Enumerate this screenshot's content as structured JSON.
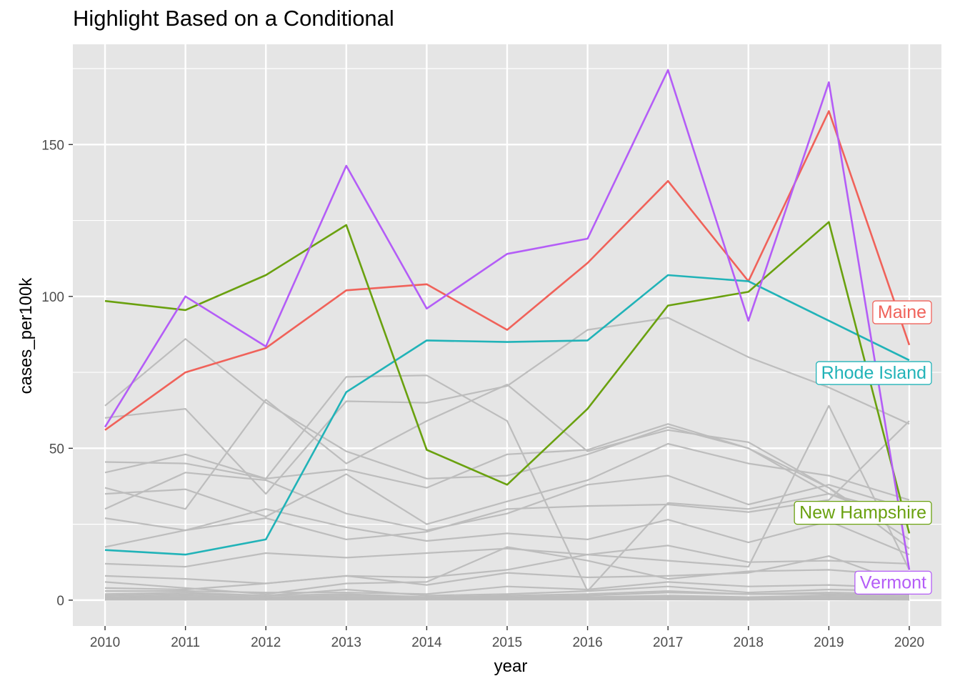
{
  "chart_data": {
    "type": "line",
    "title": "Highlight Based on a Conditional",
    "xlabel": "year",
    "ylabel": "cases_per100k",
    "x": [
      2010,
      2011,
      2012,
      2013,
      2014,
      2015,
      2016,
      2017,
      2018,
      2019,
      2020
    ],
    "xlim": [
      2009.6,
      2020.4
    ],
    "ylim": [
      -8.5,
      183
    ],
    "y_ticks": [
      0,
      50,
      100,
      150
    ],
    "grid": true,
    "legend": "none (direct labels at right end of highlighted lines)",
    "background_color": "#e5e5e5",
    "grid_color": "#ffffff",
    "highlighted_series": [
      {
        "name": "Maine",
        "color": "#f0625a",
        "label_y": 91,
        "values": [
          56,
          75,
          83,
          102,
          104,
          89,
          111,
          138,
          105,
          161,
          84
        ]
      },
      {
        "name": "Rhode Island",
        "color": "#21b3b8",
        "label_y": 71,
        "values": [
          16.5,
          15,
          20,
          68.5,
          85.5,
          85,
          85.5,
          107,
          105,
          92,
          79
        ]
      },
      {
        "name": "New Hampshire",
        "color": "#6aa10f",
        "label_y": 25,
        "values": [
          98.5,
          95.5,
          107,
          123.5,
          49.5,
          38,
          63,
          97,
          101.5,
          124.5,
          22
        ]
      },
      {
        "name": "Vermont",
        "color": "#b45df7",
        "label_y": 2,
        "values": [
          57,
          100,
          83.5,
          143,
          96,
          114,
          119,
          174.5,
          92,
          170.5,
          10
        ]
      }
    ],
    "background_series_color": "#bdbdbd",
    "background_series": [
      [
        64,
        86,
        65,
        49,
        40,
        41,
        48,
        57,
        50,
        37,
        17
      ],
      [
        60,
        63,
        35,
        65.5,
        65,
        70.5,
        89,
        93,
        80,
        70,
        58
      ],
      [
        45.5,
        45,
        40,
        73.5,
        74,
        59,
        3,
        32,
        30,
        35,
        28
      ],
      [
        42,
        48,
        40,
        43,
        37,
        48,
        49.5,
        58,
        50,
        35,
        25
      ],
      [
        37,
        30,
        66,
        45,
        59,
        71,
        49,
        56,
        52,
        37,
        20
      ],
      [
        35,
        36.5,
        27.5,
        41.5,
        25,
        32.5,
        39.5,
        51.5,
        45,
        41,
        33
      ],
      [
        30,
        42,
        39.5,
        28.5,
        23,
        28.5,
        38,
        41,
        31.5,
        38,
        30
      ],
      [
        27,
        23,
        30,
        24,
        19.5,
        22,
        20,
        26.5,
        19,
        26,
        15
      ],
      [
        17.5,
        23,
        27,
        20,
        22.5,
        30,
        31,
        31.5,
        29,
        33,
        59
      ],
      [
        12,
        11,
        15.5,
        14,
        15.5,
        17,
        15,
        18,
        12.5,
        13,
        12
      ],
      [
        8,
        7,
        5.5,
        8,
        7.5,
        10,
        15,
        13,
        11,
        64,
        10
      ],
      [
        6,
        4,
        2,
        5.5,
        6,
        17.5,
        13,
        7,
        9.5,
        10,
        8
      ],
      [
        4,
        3.5,
        5.5,
        8,
        5,
        9,
        7.5,
        8,
        9,
        14.5,
        5
      ],
      [
        3,
        3,
        2.5,
        2.5,
        2,
        4.5,
        3.5,
        6,
        4.5,
        5,
        4
      ],
      [
        2,
        2.5,
        1.5,
        3.5,
        1.5,
        2,
        3,
        4.5,
        2.5,
        3.5,
        3
      ],
      [
        1.5,
        2,
        1.5,
        2,
        1,
        1.5,
        2,
        3,
        2,
        2.5,
        2
      ],
      [
        1,
        1.5,
        1,
        1.5,
        1,
        1,
        1.5,
        2.5,
        2,
        2,
        1.5
      ],
      [
        0.8,
        1,
        0.8,
        1,
        0.8,
        1,
        1,
        1.5,
        1,
        1.5,
        1
      ],
      [
        0.5,
        0.8,
        0.5,
        0.8,
        0.5,
        0.8,
        0.8,
        1,
        0.8,
        1,
        0.8
      ],
      [
        0.4,
        0.5,
        0.4,
        0.5,
        0.4,
        0.5,
        0.5,
        0.8,
        0.5,
        0.8,
        0.5
      ],
      [
        0.2,
        0.3,
        0.2,
        0.3,
        0.2,
        0.3,
        0.3,
        0.5,
        0.3,
        0.5,
        0.3
      ],
      [
        0.1,
        0.1,
        0.1,
        0.1,
        0.1,
        0.1,
        0.1,
        0.2,
        0.1,
        0.2,
        0.1
      ]
    ]
  }
}
